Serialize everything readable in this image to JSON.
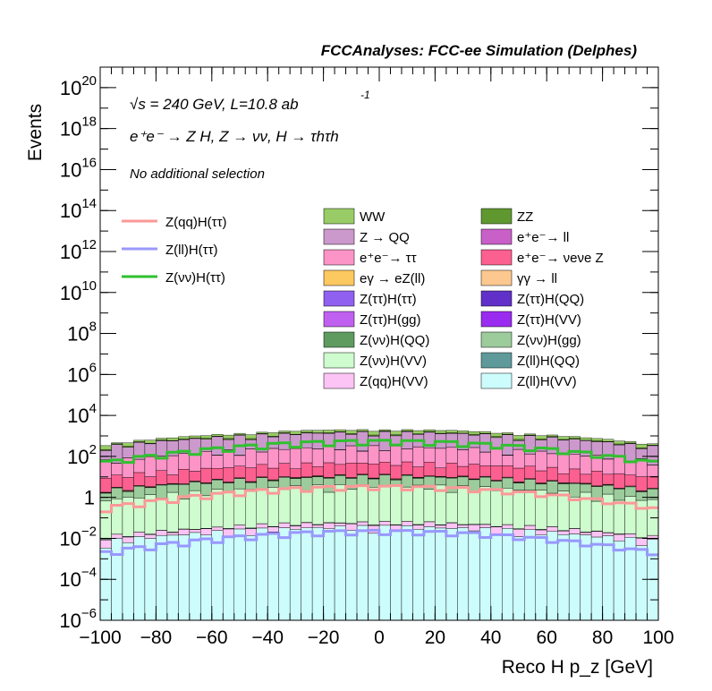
{
  "chart_data": {
    "type": "bar",
    "title": "FCCAnalyses: FCC-ee Simulation (Delphes)",
    "xlabel": "Reco H p_z [GeV]",
    "ylabel": "Events",
    "log_y": true,
    "xlim": [
      -100,
      100
    ],
    "ylim": [
      1e-06,
      1e+21
    ],
    "x_ticks": [
      "−100",
      "−80",
      "−60",
      "−40",
      "−20",
      "0",
      "20",
      "40",
      "60",
      "80",
      "100"
    ],
    "y_ticks": [
      {
        "base": "10",
        "exp": "20"
      },
      {
        "base": "10",
        "exp": "18"
      },
      {
        "base": "10",
        "exp": "16"
      },
      {
        "base": "10",
        "exp": "14"
      },
      {
        "base": "10",
        "exp": "12"
      },
      {
        "base": "10",
        "exp": "10"
      },
      {
        "base": "10",
        "exp": "8"
      },
      {
        "base": "10",
        "exp": "6"
      },
      {
        "base": "10",
        "exp": "4"
      },
      {
        "base": "10",
        "exp": "2"
      },
      {
        "base": "1",
        "exp": ""
      },
      {
        "base": "10",
        "exp": "−2"
      },
      {
        "base": "10",
        "exp": "−4"
      },
      {
        "base": "10",
        "exp": "−6"
      }
    ],
    "annotations": {
      "energy": "√s = 240 GeV, L=10.8 ab",
      "energy_exp": "-1",
      "process": "e⁺e⁻ → Z H, Z → νν, H → τhτh",
      "selection": "No additional selection"
    },
    "bin_width": 4,
    "stacked_series": [
      {
        "name": "Z(ll)H(VV)",
        "color": "#ccfcfc",
        "level": 0.03
      },
      {
        "name": "Z(qq)H(VV)",
        "color": "#fcc4f4",
        "level": 0.02
      },
      {
        "name": "Z(ll)H(QQ)",
        "color": "#5f9a9a",
        "level": 0.002
      },
      {
        "name": "Z(νν)H(VV)",
        "color": "#cefcce",
        "level": 3
      },
      {
        "name": "Z(νν)H(gg)",
        "color": "#9ccb9c",
        "level": 6
      },
      {
        "name": "Z(νν)H(QQ)",
        "color": "#5f9a5f",
        "level": 0.01
      },
      {
        "name": "Z(ττ)H(VV)",
        "color": "#9a2cf0",
        "level": 0.05
      },
      {
        "name": "Z(ττ)H(gg)",
        "color": "#c060f0",
        "level": 0.06
      },
      {
        "name": "Z(ττ)H(QQ)",
        "color": "#6030c8",
        "level": 0.05
      },
      {
        "name": "Z(ττ)H(ττ)",
        "color": "#9060f0",
        "level": 0.02
      },
      {
        "name": "γγ → ll",
        "color": "#fcc890",
        "level": 0.3
      },
      {
        "name": "eγ → eZ(ll)",
        "color": "#fcc860",
        "level": 0.5
      },
      {
        "name": "e⁺e⁻→ νeνe Z",
        "color": "#fc6090",
        "level": 30
      },
      {
        "name": "e⁺e⁻→ ττ",
        "color": "#fc94c8",
        "level": 200
      },
      {
        "name": "e⁺e⁻→ ll",
        "color": "#c860c8",
        "level": 5
      },
      {
        "name": "Z → QQ",
        "color": "#cc99cc",
        "level": 1000
      },
      {
        "name": "ZZ",
        "color": "#609830",
        "level": 100
      },
      {
        "name": "WW",
        "color": "#99cc66",
        "level": 400
      }
    ],
    "signal_series": [
      {
        "name": "Z(qq)H(ττ)",
        "color": "#fc9898",
        "peak": 3
      },
      {
        "name": "Z(ll)H(ττ)",
        "color": "#9898fc",
        "peak": 0.02
      },
      {
        "name": "Z(νν)H(ττ)",
        "color": "#30c030",
        "peak": 500
      }
    ],
    "legend_placement": "top-center"
  }
}
